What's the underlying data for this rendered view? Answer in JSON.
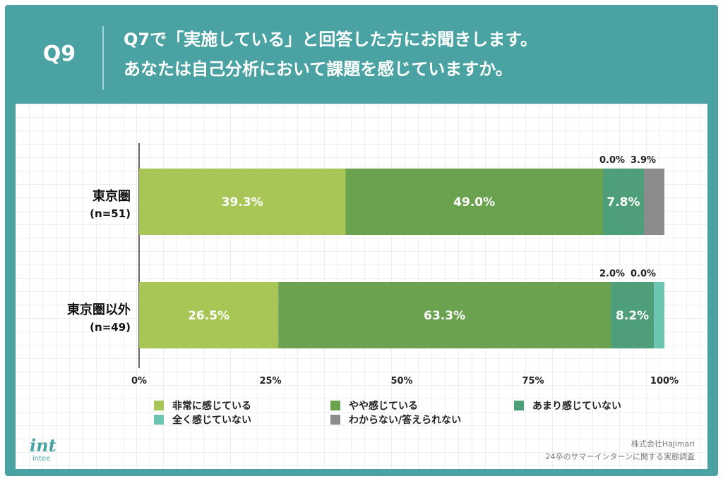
{
  "header": {
    "question_number": "Q9",
    "title_line1": "Q7で「実施している」と回答した方にお聞きします。",
    "title_line2": "あなたは自己分析において課題を感じていますか。"
  },
  "colors": {
    "frame": "#4aa3a2",
    "series": [
      "#a8c655",
      "#6aa24f",
      "#4e9e79",
      "#6cc5b0",
      "#8c8c8c"
    ]
  },
  "chart_data": {
    "type": "bar",
    "orientation": "horizontal",
    "stacked": true,
    "percent": true,
    "categories": [
      "東京圏",
      "東京圏以外"
    ],
    "category_sub": [
      "(n=51)",
      "(n=49)"
    ],
    "series": [
      {
        "name": "非常に感じている",
        "values": [
          39.3,
          26.5
        ],
        "labels": [
          "39.3%",
          "26.5%"
        ]
      },
      {
        "name": "やや感じている",
        "values": [
          49.0,
          63.3
        ],
        "labels": [
          "49.0%",
          "63.3%"
        ]
      },
      {
        "name": "あまり感じていない",
        "values": [
          7.8,
          8.2
        ],
        "labels": [
          "7.8%",
          "8.2%"
        ]
      },
      {
        "name": "全く感じていない",
        "values": [
          0.0,
          2.0
        ],
        "labels": [
          "0.0%",
          "2.0%"
        ]
      },
      {
        "name": "わからない/答えられない",
        "values": [
          3.9,
          0.0
        ],
        "labels": [
          "3.9%",
          "0.0%"
        ]
      }
    ],
    "xlim": [
      0,
      100
    ],
    "x_ticks": [
      "0%",
      "25%",
      "50%",
      "75%",
      "100%"
    ],
    "grid": false,
    "legend_position": "bottom"
  },
  "footer": {
    "logo_mark": "int",
    "logo_name": "intee",
    "source_line1": "株式会社Hajimari",
    "source_line2": "24卒のサマーインターンに関する実態調査"
  }
}
